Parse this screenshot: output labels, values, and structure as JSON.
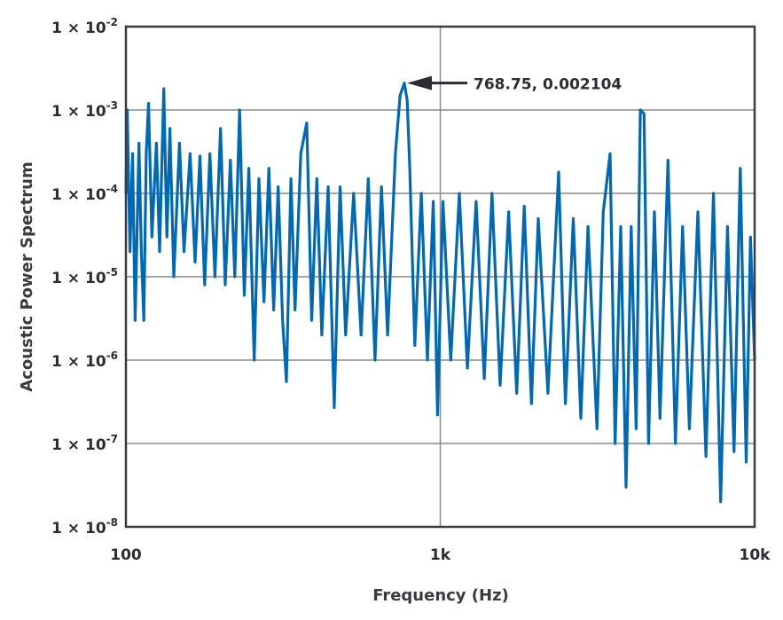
{
  "chart_data": {
    "type": "line",
    "title": "",
    "xlabel": "Frequency (Hz)",
    "ylabel": "Acoustic Power Spectrum",
    "x_scale": "log",
    "y_scale": "log",
    "xlim": [
      100,
      10000
    ],
    "ylim": [
      1e-08,
      0.01
    ],
    "grid": true,
    "line_color": "#0069b4",
    "x_ticks": [
      {
        "value": 100,
        "label": "100"
      },
      {
        "value": 1000,
        "label": "1k"
      },
      {
        "value": 10000,
        "label": "10k"
      }
    ],
    "y_ticks": [
      {
        "value": 0.01,
        "base": "1 × 10",
        "exp": "-2"
      },
      {
        "value": 0.001,
        "base": "1 × 10",
        "exp": "-3"
      },
      {
        "value": 0.0001,
        "base": "1 × 10",
        "exp": "-4"
      },
      {
        "value": 1e-05,
        "base": "1 × 10",
        "exp": "-5"
      },
      {
        "value": 1e-06,
        "base": "1 × 10",
        "exp": "-6"
      },
      {
        "value": 1e-07,
        "base": "1 × 10",
        "exp": "-7"
      },
      {
        "value": 1e-08,
        "base": "1 × 10",
        "exp": "-8"
      }
    ],
    "annotation": {
      "x": 768.75,
      "y": 0.002104,
      "text": "768.75, 0.002104"
    },
    "series": [
      {
        "points": [
          [
            100,
            0.0001
          ],
          [
            101,
            0.001
          ],
          [
            103,
            2e-05
          ],
          [
            105,
            0.0003
          ],
          [
            107,
            3e-06
          ],
          [
            110,
            0.0004
          ],
          [
            112,
            2e-05
          ],
          [
            114,
            3e-06
          ],
          [
            116,
            0.0003
          ],
          [
            118,
            0.0012
          ],
          [
            121,
            3e-05
          ],
          [
            125,
            0.0004
          ],
          [
            128,
            2e-05
          ],
          [
            132,
            0.0018
          ],
          [
            135,
            3e-05
          ],
          [
            138,
            0.0006
          ],
          [
            142,
            1e-05
          ],
          [
            148,
            0.0004
          ],
          [
            153,
            2e-05
          ],
          [
            160,
            0.0003
          ],
          [
            166,
            1.5e-05
          ],
          [
            172,
            0.00028
          ],
          [
            178,
            8e-06
          ],
          [
            185,
            0.0003
          ],
          [
            192,
            1e-05
          ],
          [
            200,
            0.0006
          ],
          [
            207,
            8e-06
          ],
          [
            215,
            0.00025
          ],
          [
            222,
            1e-05
          ],
          [
            230,
            0.001
          ],
          [
            238,
            6e-06
          ],
          [
            246,
            0.0002
          ],
          [
            256,
            1e-06
          ],
          [
            265,
            0.00015
          ],
          [
            275,
            5e-06
          ],
          [
            285,
            0.0002
          ],
          [
            295,
            4e-06
          ],
          [
            305,
            0.00012
          ],
          [
            315,
            3e-06
          ],
          [
            324,
            5.5e-07
          ],
          [
            335,
            0.00015
          ],
          [
            345,
            4e-06
          ],
          [
            360,
            0.0003
          ],
          [
            376,
            0.0007
          ],
          [
            390,
            3e-06
          ],
          [
            405,
            0.00015
          ],
          [
            420,
            2e-06
          ],
          [
            440,
            0.00012
          ],
          [
            460,
            2.7e-07
          ],
          [
            480,
            0.00012
          ],
          [
            500,
            2e-06
          ],
          [
            530,
            0.0001
          ],
          [
            560,
            2e-06
          ],
          [
            590,
            0.00015
          ],
          [
            620,
            1e-06
          ],
          [
            650,
            0.00012
          ],
          [
            680,
            2e-06
          ],
          [
            720,
            0.0003
          ],
          [
            745,
            0.0015
          ],
          [
            768.75,
            0.002104
          ],
          [
            785,
            0.0013
          ],
          [
            800,
            0.0002
          ],
          [
            830,
            1.5e-06
          ],
          [
            870,
            0.0001
          ],
          [
            910,
            1e-06
          ],
          [
            950,
            8e-05
          ],
          [
            980,
            2.2e-07
          ],
          [
            1020,
            8e-05
          ],
          [
            1080,
            1e-06
          ],
          [
            1150,
            0.0001
          ],
          [
            1220,
            8e-07
          ],
          [
            1300,
            8e-05
          ],
          [
            1380,
            6e-07
          ],
          [
            1460,
            0.0001
          ],
          [
            1550,
            5e-07
          ],
          [
            1650,
            6e-05
          ],
          [
            1750,
            4e-07
          ],
          [
            1850,
            7e-05
          ],
          [
            1950,
            3e-07
          ],
          [
            2050,
            5e-05
          ],
          [
            2200,
            4e-07
          ],
          [
            2380,
            0.00018
          ],
          [
            2500,
            3e-07
          ],
          [
            2650,
            5e-05
          ],
          [
            2800,
            2e-07
          ],
          [
            2950,
            4e-05
          ],
          [
            3150,
            1.5e-07
          ],
          [
            3300,
            6e-05
          ],
          [
            3470,
            0.0003
          ],
          [
            3600,
            1e-07
          ],
          [
            3750,
            4e-05
          ],
          [
            3900,
            3e-08
          ],
          [
            4050,
            4e-05
          ],
          [
            4200,
            1.5e-07
          ],
          [
            4330,
            0.001
          ],
          [
            4450,
            0.0009
          ],
          [
            4600,
            1e-07
          ],
          [
            4800,
            6e-05
          ],
          [
            5000,
            2e-07
          ],
          [
            5300,
            0.00025
          ],
          [
            5600,
            1e-07
          ],
          [
            5900,
            4e-05
          ],
          [
            6200,
            1.5e-07
          ],
          [
            6600,
            6e-05
          ],
          [
            7000,
            7e-08
          ],
          [
            7400,
            0.0001
          ],
          [
            7800,
            2e-08
          ],
          [
            8200,
            4e-05
          ],
          [
            8600,
            8e-08
          ],
          [
            9000,
            0.0002
          ],
          [
            9400,
            6e-08
          ],
          [
            9700,
            3e-05
          ],
          [
            10000,
            1e-06
          ]
        ]
      }
    ]
  }
}
